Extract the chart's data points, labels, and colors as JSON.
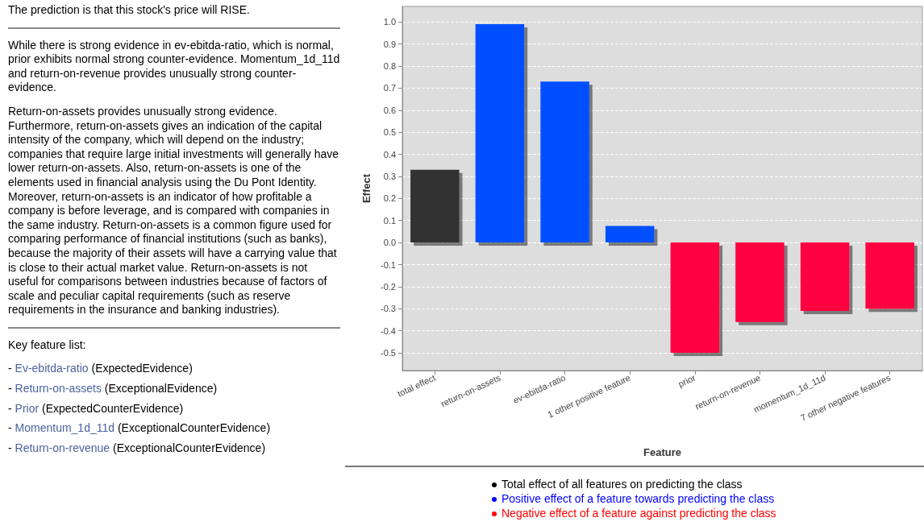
{
  "chart_data": {
    "type": "bar",
    "xlabel": "Feature",
    "ylabel": "Effect",
    "categories": [
      "total effect",
      "return-on-assets",
      "ev-ebitda-ratio",
      "1 other positive feature",
      "prior",
      "return-on-revenue",
      "momentum_1d_11d",
      "7 other negative features"
    ],
    "values": [
      0.33,
      0.99,
      0.73,
      0.075,
      -0.5,
      -0.36,
      -0.31,
      -0.3
    ],
    "colors": [
      "#333333",
      "#0050ff",
      "#0050ff",
      "#0050ff",
      "#ff0040",
      "#ff0040",
      "#ff0040",
      "#ff0040"
    ],
    "ylim": [
      -0.58,
      1.07
    ],
    "yticks": [
      -0.5,
      -0.4,
      -0.3,
      -0.2,
      -0.1,
      {
        "value": 0,
        "label": "0.0"
      },
      0.1,
      0.2,
      0.3,
      0.4,
      0.5,
      0.6,
      0.7,
      0.8,
      0.9,
      {
        "value": 1,
        "label": "1.0"
      }
    ],
    "grid": "y",
    "annotations": [
      "The prediction is that this stock's price will RISE.",
      "While there is strong evidence in ev-ebitda-ratio, which is normal, prior exhibits normal strong counter-evidence. Momentum_1d_11d and return-on-revenue provides unusually strong counter-evidence.",
      "Return-on-assets provides unusually strong evidence. Furthermore, return-on-assets gives an indication of the capital intensity of the company, which will depend on the industry; companies that require large initial investments will generally have lower return-on-assets. Also, return-on-assets is one of the elements used in financial analysis using the Du Pont Identity. Moreover, return-on-assets is an indicator of how profitable a company is before leverage, and is compared with companies in the same industry. Return-on-assets is a common figure used for comparing performance of financial institutions (such as banks), because the majority of their assets will have a carrying value that is close to their actual market value. Return-on-assets is not useful for comparisons between industries because of factors of scale and peculiar capital requirements (such as reserve requirements in the insurance and banking industries).",
      "Key feature list:",
      "- Ev-ebitda-ratio (ExpectedEvidence)",
      "- Return-on-assets (ExceptionalEvidence)",
      "- Prior (ExpectedCounterEvidence)",
      "- Momentum_1d_11d (ExceptionalCounterEvidence)",
      "- Return-on-revenue (ExceptionalCounterEvidence)",
      "Total effect of all features on predicting the class",
      "Positive effect of a feature towards predicting the class",
      "Negative effect of a feature against predicting the class"
    ]
  }
}
